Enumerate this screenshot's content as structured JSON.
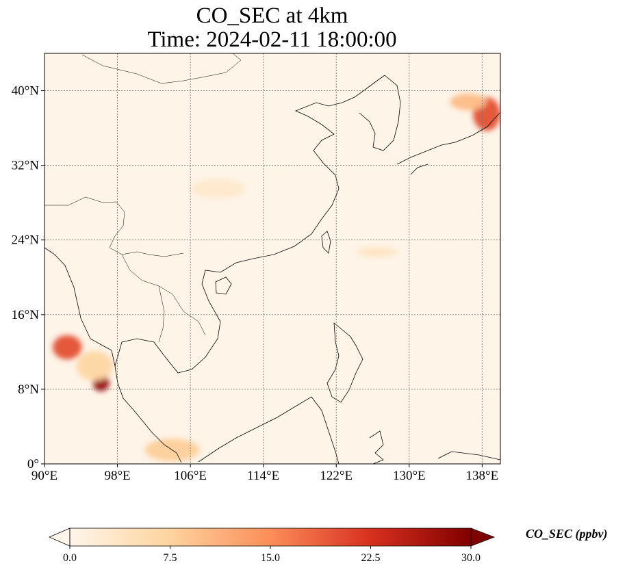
{
  "title": {
    "line1": "CO_SEC at 4km",
    "line2": "Time: 2024-02-11 18:00:00"
  },
  "chart_data": {
    "type": "heatmap",
    "variable": "CO_SEC",
    "level": "4km",
    "time": "2024-02-11 18:00:00",
    "lon_range": [
      90,
      140
    ],
    "lat_range": [
      0,
      44
    ],
    "grid": true,
    "x_ticks": [
      {
        "value": 90,
        "label": "90°E"
      },
      {
        "value": 98,
        "label": "98°E"
      },
      {
        "value": 106,
        "label": "106°E"
      },
      {
        "value": 114,
        "label": "114°E"
      },
      {
        "value": 122,
        "label": "122°E"
      },
      {
        "value": 130,
        "label": "130°E"
      },
      {
        "value": 138,
        "label": "138°E"
      }
    ],
    "y_ticks": [
      {
        "value": 0,
        "label": "0°"
      },
      {
        "value": 8,
        "label": "8°N"
      },
      {
        "value": 16,
        "label": "16°N"
      },
      {
        "value": 24,
        "label": "24°N"
      },
      {
        "value": 32,
        "label": "32°N"
      },
      {
        "value": 40,
        "label": "40°N"
      }
    ],
    "colorbar": {
      "label": "CO_SEC (ppbv)",
      "min": 0.0,
      "max": 30.0,
      "ticks": [
        {
          "value": 0,
          "label": "0.0"
        },
        {
          "value": 7.5,
          "label": "7.5"
        },
        {
          "value": 15,
          "label": "15.0"
        },
        {
          "value": 22.5,
          "label": "22.5"
        },
        {
          "value": 30,
          "label": "30.0"
        }
      ],
      "colors": [
        "#fff5eb",
        "#fdd49e",
        "#fc8d59",
        "#d7301f",
        "#7f0000"
      ]
    },
    "plumes": [
      {
        "lon": 92.5,
        "lat": 12.5,
        "value": 20,
        "rlon": 1.6,
        "rlat": 1.3
      },
      {
        "lon": 96.2,
        "lat": 8.7,
        "value": 28,
        "rlon": 0.9,
        "rlat": 0.9
      },
      {
        "lon": 95.5,
        "lat": 10.5,
        "value": 7,
        "rlon": 2.0,
        "rlat": 1.6
      },
      {
        "lon": 104.0,
        "lat": 1.5,
        "value": 8,
        "rlon": 3.0,
        "rlat": 1.2
      },
      {
        "lon": 138.5,
        "lat": 37.5,
        "value": 20,
        "rlon": 1.5,
        "rlat": 1.8
      },
      {
        "lon": 136.5,
        "lat": 38.8,
        "value": 10,
        "rlon": 2.0,
        "rlat": 0.9
      },
      {
        "lon": 126.5,
        "lat": 22.7,
        "value": 4,
        "rlon": 2.2,
        "rlat": 0.5
      },
      {
        "lon": 109.0,
        "lat": 29.5,
        "value": 3,
        "rlon": 3.0,
        "rlat": 1.0
      }
    ]
  }
}
